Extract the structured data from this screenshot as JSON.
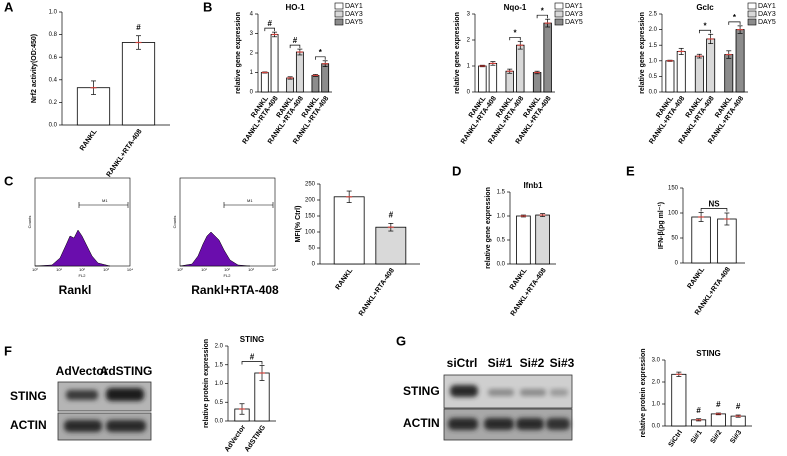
{
  "panel_labels": [
    "A",
    "B",
    "C",
    "D",
    "E",
    "F",
    "G"
  ],
  "chart_data": [
    {
      "type": "bar",
      "ylabel": "Nrf2 activity(OD:450)",
      "categories": [
        "RANKL",
        "RANKL+RTA-408"
      ],
      "values": [
        0.33,
        0.73
      ],
      "errors": [
        0.06,
        0.06
      ],
      "colors": [
        "#ffffff",
        "#ffffff"
      ],
      "ylim": [
        0,
        1.0
      ],
      "yticks": [
        {
          "value": 0,
          "label": "0.0"
        },
        0.2,
        0.4,
        0.6,
        0.8,
        {
          "value": 1,
          "label": "1.0"
        }
      ],
      "annotations": [
        "#"
      ]
    },
    {
      "type": "bar",
      "title": "HO-1",
      "ylabel": "relative gene expression",
      "categories": [
        "RANKL",
        "RANKL+RTA-408",
        "RANKL",
        "RANKL+RTA-408",
        "RANKL",
        "RANKL+RTA-408"
      ],
      "series": [
        {
          "name": "DAY1",
          "color": "#ffffff",
          "values": [
            1.0,
            2.95,
            null,
            null,
            null,
            null
          ],
          "errors": [
            0.03,
            0.12,
            null,
            null,
            null,
            null
          ]
        },
        {
          "name": "DAY3",
          "color": "#d9d9d9",
          "values": [
            null,
            null,
            0.72,
            2.05,
            null,
            null
          ],
          "errors": [
            null,
            null,
            0.06,
            0.15,
            null,
            null
          ]
        },
        {
          "name": "DAY5",
          "color": "#8c8c8c",
          "values": [
            null,
            null,
            null,
            null,
            0.85,
            1.45
          ],
          "errors": [
            null,
            null,
            null,
            null,
            0.05,
            0.15
          ]
        }
      ],
      "ylim": [
        0,
        4
      ],
      "yticks": [
        0,
        1,
        2,
        3,
        4
      ],
      "annotations": [
        "#",
        "#",
        "*"
      ]
    },
    {
      "type": "bar",
      "title": "Nqo-1",
      "ylabel": "relative gene expression",
      "categories": [
        "RANKL",
        "RANKL+RTA-408",
        "RANKL",
        "RANKL+RTA-408",
        "RANKL",
        "RANKL+RTA-408"
      ],
      "series": [
        {
          "name": "DAY1",
          "color": "#ffffff",
          "values": [
            1.0,
            1.1,
            null,
            null,
            null,
            null
          ],
          "errors": [
            0.03,
            0.07,
            null,
            null,
            null,
            null
          ]
        },
        {
          "name": "DAY3",
          "color": "#d9d9d9",
          "values": [
            null,
            null,
            0.8,
            1.8,
            null,
            null
          ],
          "errors": [
            null,
            null,
            0.08,
            0.15,
            null,
            null
          ]
        },
        {
          "name": "DAY5",
          "color": "#8c8c8c",
          "values": [
            null,
            null,
            null,
            null,
            0.75,
            2.65
          ],
          "errors": [
            null,
            null,
            null,
            null,
            0.05,
            0.15
          ]
        }
      ],
      "ylim": [
        0,
        3
      ],
      "yticks": [
        0,
        1,
        2,
        3
      ],
      "annotations": [
        "*",
        "*"
      ]
    },
    {
      "type": "bar",
      "title": "Gclc",
      "ylabel": "relative gene expression",
      "categories": [
        "RANKL",
        "RANKL+RTA-408",
        "RANKL",
        "RANKL+RTA-408",
        "RANKL",
        "RANKL+RTA-408"
      ],
      "series": [
        {
          "name": "DAY1",
          "color": "#ffffff",
          "values": [
            1.0,
            1.3,
            null,
            null,
            null,
            null
          ],
          "errors": [
            0.02,
            0.1,
            null,
            null,
            null,
            null
          ]
        },
        {
          "name": "DAY3",
          "color": "#d9d9d9",
          "values": [
            null,
            null,
            1.15,
            1.7,
            null,
            null
          ],
          "errors": [
            null,
            null,
            0.06,
            0.15,
            null,
            null
          ]
        },
        {
          "name": "DAY5",
          "color": "#8c8c8c",
          "values": [
            null,
            null,
            null,
            null,
            1.2,
            2.0
          ],
          "errors": [
            null,
            null,
            null,
            null,
            0.12,
            0.12
          ]
        }
      ],
      "ylim": [
        0,
        2.5
      ],
      "yticks": [
        {
          "value": 0,
          "label": "0.0"
        },
        0.5,
        {
          "value": 1,
          "label": "1.0"
        },
        1.5,
        {
          "value": 2,
          "label": "2.0"
        },
        2.5
      ],
      "annotations": [
        "*",
        "*"
      ]
    },
    {
      "type": "bar",
      "ylabel": "MFI(% Ctrl)",
      "categories": [
        "RANKL",
        "RANKL+RTA-408"
      ],
      "values": [
        210,
        115
      ],
      "errors": [
        18,
        12
      ],
      "colors": [
        "#ffffff",
        "#d9d9d9"
      ],
      "ylim": [
        0,
        250
      ],
      "yticks": [
        0,
        50,
        100,
        150,
        200,
        250
      ],
      "annotations": [
        "#"
      ]
    },
    {
      "type": "bar",
      "title": "Ifnb1",
      "ylabel": "relative gene expression",
      "categories": [
        "RANKL",
        "RANKL+RTA-408"
      ],
      "values": [
        1.0,
        1.02
      ],
      "errors": [
        0.02,
        0.03
      ],
      "colors": [
        "#ffffff",
        "#d9d9d9"
      ],
      "ylim": [
        0,
        1.5
      ],
      "yticks": [
        {
          "value": 0,
          "label": "0.0"
        },
        0.5,
        {
          "value": 1,
          "label": "1.0"
        },
        1.5
      ]
    },
    {
      "type": "bar",
      "ylabel": "IFN-β(pg ml⁻¹)",
      "categories": [
        "RANKL",
        "RANKL+RTA-408"
      ],
      "values": [
        92,
        88
      ],
      "errors": [
        9,
        12
      ],
      "colors": [
        "#ffffff",
        "#ffffff"
      ],
      "ylim": [
        0,
        150
      ],
      "yticks": [
        0,
        50,
        100,
        150
      ],
      "annotations": [
        "NS"
      ]
    },
    {
      "type": "bar",
      "title": "STING",
      "ylabel": "relative protein expression",
      "categories": [
        "AdVector",
        "AdSTING"
      ],
      "values": [
        0.32,
        1.28
      ],
      "errors": [
        0.14,
        0.2
      ],
      "colors": [
        "#ffffff",
        "#ffffff"
      ],
      "ylim": [
        0,
        2.0
      ],
      "yticks": [
        {
          "value": 0,
          "label": "0.0"
        },
        0.5,
        {
          "value": 1,
          "label": "1.0"
        },
        1.5,
        {
          "value": 2,
          "label": "2.0"
        }
      ],
      "annotations": [
        "#"
      ]
    },
    {
      "type": "bar",
      "title": "STING",
      "ylabel": "relative protein expression",
      "categories": [
        "SiCtrl",
        "Si#1",
        "Si#2",
        "Si#3"
      ],
      "values": [
        2.35,
        0.28,
        0.55,
        0.45
      ],
      "errors": [
        0.1,
        0.05,
        0.04,
        0.05
      ],
      "colors": [
        "#ffffff",
        "#ffffff",
        "#ffffff",
        "#ffffff"
      ],
      "ylim": [
        0,
        3.0
      ],
      "yticks": [
        {
          "value": 0,
          "label": "0.0"
        },
        {
          "value": 1,
          "label": "1.0"
        },
        {
          "value": 2,
          "label": "2.0"
        },
        {
          "value": 3,
          "label": "3.0"
        }
      ],
      "annotations": [
        "#",
        "#",
        "#"
      ]
    }
  ],
  "flow": {
    "captions": [
      "Rankl",
      "Rankl+RTA-408"
    ],
    "marker": "M1",
    "xlabel": "FL2",
    "ylabel": "Counts",
    "xticks": [
      "10⁰",
      "10¹",
      "10²",
      "10³",
      "10⁴"
    ]
  },
  "blots": [
    {
      "lanes": [
        "AdVector",
        "AdSTING"
      ],
      "rows": [
        "STING",
        "ACTIN"
      ]
    },
    {
      "lanes": [
        "siCtrl",
        "Si#1",
        "Si#2",
        "Si#3"
      ],
      "rows": [
        "STING",
        "ACTIN"
      ]
    }
  ]
}
